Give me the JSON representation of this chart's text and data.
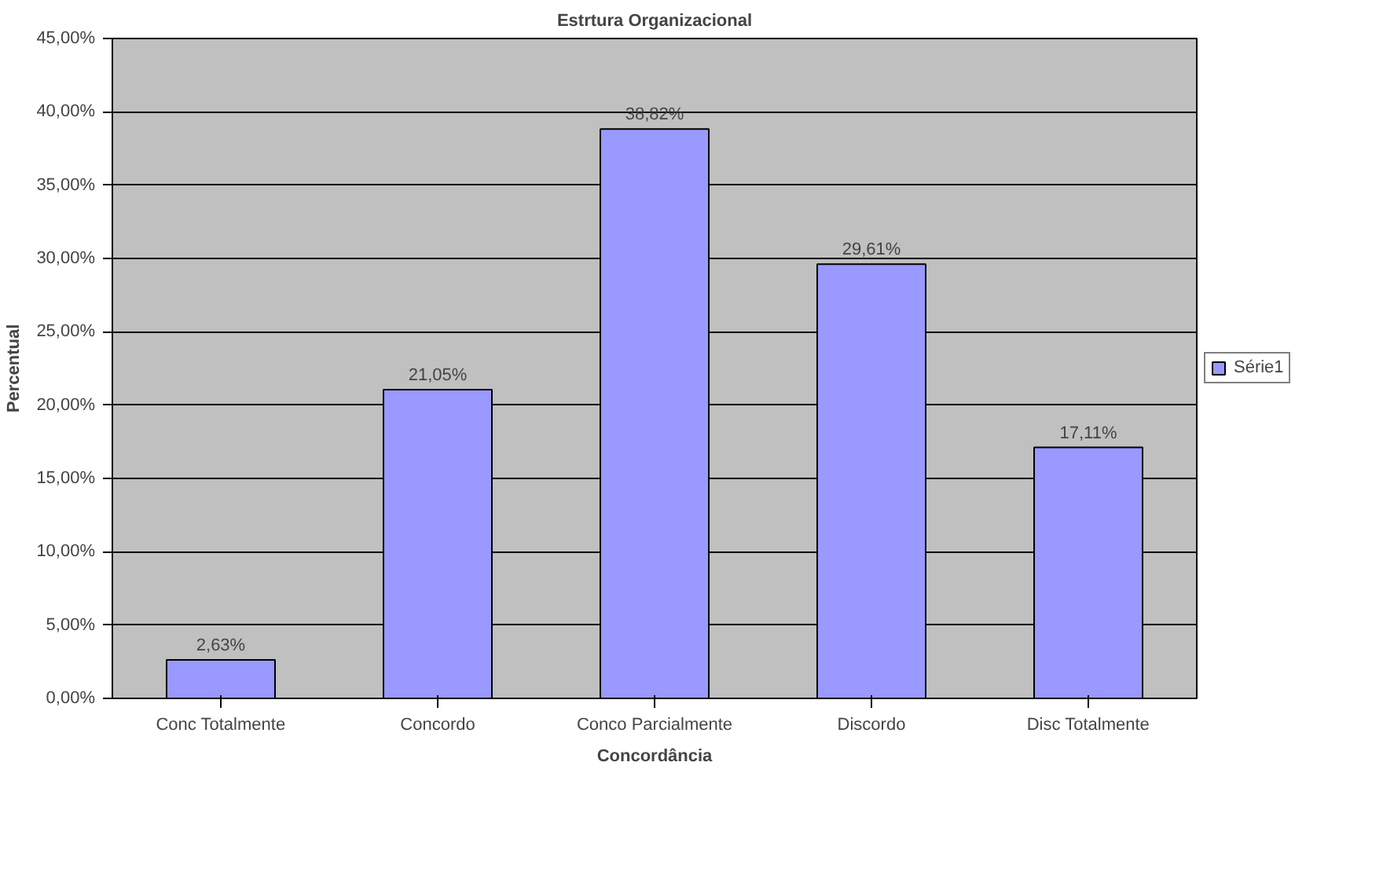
{
  "chart_data": {
    "type": "bar",
    "title": "Estrtura Organizacional",
    "xlabel": "Concordância",
    "ylabel": "Percentual",
    "categories": [
      "Conc Totalmente",
      "Concordo",
      "Conco Parcialmente",
      "Discordo",
      "Disc Totalmente"
    ],
    "series": [
      {
        "name": "Série1",
        "color": "#9999ff",
        "values": [
          2.63,
          21.05,
          38.82,
          29.61,
          17.11
        ],
        "value_labels": [
          "2,63%",
          "21,05%",
          "38,82%",
          "29,61%",
          "17,11%"
        ]
      }
    ],
    "ylim": [
      0,
      45
    ],
    "yticks": [
      {
        "value": 0,
        "label": "0,00%"
      },
      {
        "value": 5,
        "label": "5,00%"
      },
      {
        "value": 10,
        "label": "10,00%"
      },
      {
        "value": 15,
        "label": "15,00%"
      },
      {
        "value": 20,
        "label": "20,00%"
      },
      {
        "value": 25,
        "label": "25,00%"
      },
      {
        "value": 30,
        "label": "30,00%"
      },
      {
        "value": 35,
        "label": "35,00%"
      },
      {
        "value": 40,
        "label": "40,00%"
      },
      {
        "value": 45,
        "label": "45,00%"
      }
    ],
    "grid": "y",
    "legend": "right"
  }
}
